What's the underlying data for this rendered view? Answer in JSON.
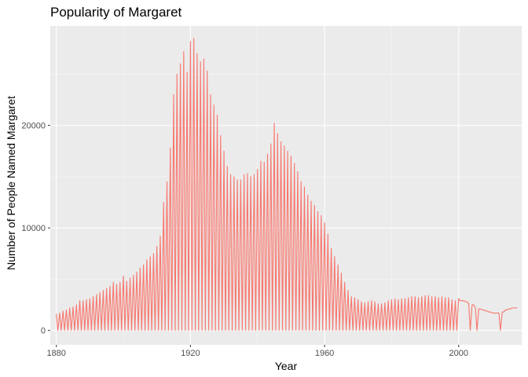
{
  "chart_data": {
    "type": "line",
    "title": "Popularity of Margaret",
    "xlabel": "Year",
    "ylabel": "Number of People Named Margaret",
    "xlim": [
      1878.2,
      2018.8
    ],
    "ylim": [
      -1400,
      29700
    ],
    "x_ticks": [
      1880,
      1920,
      1960,
      2000
    ],
    "x_tick_labels": [
      "1880",
      "1920",
      "1960",
      "2000"
    ],
    "y_ticks": [
      0,
      10000,
      20000
    ],
    "y_tick_labels": [
      "0",
      "10000",
      "20000"
    ],
    "grid": true,
    "legend": "none",
    "series": [
      {
        "color": "#f8766d",
        "x": [
          1880,
          1881,
          1882,
          1883,
          1884,
          1885,
          1886,
          1887,
          1888,
          1889,
          1890,
          1891,
          1892,
          1893,
          1894,
          1895,
          1896,
          1897,
          1898,
          1899,
          1900,
          1901,
          1902,
          1903,
          1904,
          1905,
          1906,
          1907,
          1908,
          1909,
          1910,
          1911,
          1912,
          1913,
          1914,
          1915,
          1916,
          1917,
          1918,
          1919,
          1920,
          1921,
          1922,
          1923,
          1924,
          1925,
          1926,
          1927,
          1928,
          1929,
          1930,
          1931,
          1932,
          1933,
          1934,
          1935,
          1936,
          1937,
          1938,
          1939,
          1940,
          1941,
          1942,
          1943,
          1944,
          1945,
          1946,
          1947,
          1948,
          1949,
          1950,
          1951,
          1952,
          1953,
          1954,
          1955,
          1956,
          1957,
          1958,
          1959,
          1960,
          1961,
          1962,
          1963,
          1964,
          1965,
          1966,
          1967,
          1968,
          1969,
          1970,
          1971,
          1972,
          1973,
          1974,
          1975,
          1976,
          1977,
          1978,
          1979,
          1980,
          1981,
          1982,
          1983,
          1984,
          1985,
          1986,
          1987,
          1988,
          1989,
          1990,
          1991,
          1992,
          1993,
          1994,
          1995,
          1996,
          1997,
          1998,
          1999,
          2000,
          2001,
          2002,
          2003,
          2004,
          2005,
          2006,
          2007,
          2008,
          2009,
          2010,
          2011,
          2012,
          2013,
          2014,
          2015,
          2016,
          2017
        ],
        "high": [
          1600,
          1700,
          1900,
          2000,
          2200,
          2300,
          2500,
          2900,
          2900,
          3000,
          3100,
          3300,
          3500,
          3700,
          3900,
          4100,
          4300,
          4700,
          4500,
          4700,
          5300,
          4800,
          5100,
          5400,
          5700,
          6100,
          6400,
          6900,
          7200,
          7500,
          8200,
          9200,
          12500,
          14500,
          17800,
          23000,
          25000,
          26000,
          27200,
          25200,
          28200,
          28500,
          27000,
          26200,
          26500,
          25300,
          23000,
          22000,
          21000,
          19000,
          17500,
          16000,
          15200,
          15000,
          14700,
          14700,
          15200,
          15300,
          15000,
          15200,
          15700,
          16500,
          16400,
          17200,
          18200,
          20200,
          19200,
          18400,
          18000,
          17500,
          17000,
          16300,
          15500,
          14500,
          14000,
          13200,
          12600,
          12200,
          11600,
          11200,
          10500,
          9400,
          8000,
          7200,
          6400,
          5600,
          4700,
          3900,
          3300,
          3200,
          3000,
          2800,
          2700,
          2800,
          2900,
          2800,
          2600,
          2600,
          2700,
          2900,
          3000,
          3100,
          3000,
          3100,
          3100,
          3200,
          3300,
          3300,
          3200,
          3300,
          3400,
          3400,
          3300,
          3300,
          3200,
          3300,
          3200,
          3200,
          3000,
          2900,
          3100,
          2900,
          2800,
          2600,
          2500,
          2200,
          2100,
          2000,
          1900,
          1800,
          1700,
          1700,
          1700,
          1800,
          2000,
          2100,
          2200,
          2200
        ],
        "low": [
          0,
          0,
          0,
          0,
          0,
          0,
          0,
          0,
          0,
          0,
          0,
          0,
          0,
          0,
          0,
          0,
          0,
          0,
          0,
          0,
          0,
          0,
          0,
          0,
          0,
          0,
          0,
          0,
          0,
          0,
          0,
          0,
          0,
          0,
          0,
          0,
          0,
          0,
          0,
          0,
          0,
          0,
          0,
          0,
          0,
          0,
          0,
          0,
          0,
          0,
          0,
          0,
          0,
          0,
          0,
          0,
          0,
          0,
          0,
          0,
          0,
          0,
          0,
          0,
          0,
          0,
          0,
          0,
          0,
          0,
          0,
          0,
          0,
          0,
          0,
          0,
          0,
          0,
          0,
          0,
          0,
          0,
          0,
          0,
          0,
          0,
          0,
          0,
          0,
          0,
          0,
          0,
          0,
          0,
          0,
          0,
          0,
          0,
          0,
          0,
          0,
          0,
          0,
          0,
          0,
          0,
          0,
          0,
          0,
          0,
          0,
          0,
          0,
          0,
          0,
          0,
          0,
          0,
          0,
          0,
          2900,
          2900,
          2800,
          0,
          2500,
          0,
          2100,
          2000,
          1900,
          1800,
          1700,
          1700,
          0,
          1800,
          2000,
          2100,
          2200,
          2200
        ]
      }
    ]
  }
}
